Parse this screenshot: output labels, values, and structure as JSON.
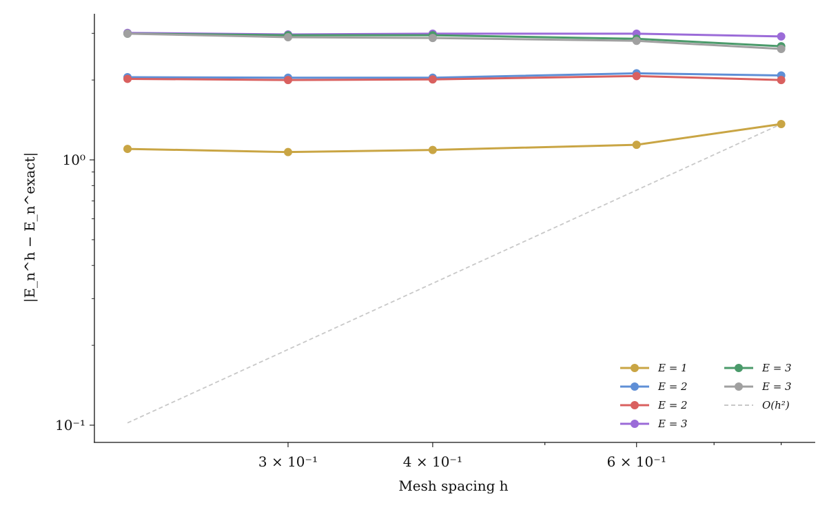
{
  "chart_data": {
    "type": "line",
    "xlabel": "Mesh spacing h",
    "ylabel": "|E_n^h − E_n^exact|",
    "xscale": "log",
    "yscale": "log",
    "x": [
      0.218,
      0.3,
      0.4,
      0.6,
      0.8
    ],
    "xlim": [
      0.2,
      0.85
    ],
    "ylim": [
      0.088,
      3.5
    ],
    "x_tick_labels": [
      {
        "value": 0.3,
        "label": "3 × 10⁻¹"
      },
      {
        "value": 0.4,
        "label": "4 × 10⁻¹"
      },
      {
        "value": 0.6,
        "label": "6 × 10⁻¹"
      }
    ],
    "y_tick_labels": [
      {
        "value": 1,
        "label": "10⁰"
      },
      {
        "value": 0.1,
        "label": "10⁻¹"
      }
    ],
    "grid": false,
    "legend_placement": "lower-right",
    "series": [
      {
        "name": "E = 1",
        "color": "#c9a544",
        "values": [
          1.1,
          1.07,
          1.09,
          1.14,
          1.365
        ]
      },
      {
        "name": "E = 2",
        "color": "#5f8fd6",
        "values": [
          2.05,
          2.04,
          2.04,
          2.12,
          2.08
        ]
      },
      {
        "name": "E = 2",
        "color": "#d9605f",
        "values": [
          2.02,
          2.0,
          2.01,
          2.07,
          2.0
        ]
      },
      {
        "name": "E = 3",
        "color": "#9b6bd8",
        "values": [
          3.01,
          2.97,
          2.99,
          2.99,
          2.92
        ]
      },
      {
        "name": "E = 3",
        "color": "#4a9a6a",
        "values": [
          2.99,
          2.95,
          2.95,
          2.86,
          2.68
        ]
      },
      {
        "name": "E = 3",
        "color": "#a0a0a0",
        "values": [
          2.99,
          2.9,
          2.88,
          2.81,
          2.62
        ]
      }
    ],
    "reference": {
      "name": "O(h²)",
      "color": "#c8c8c8",
      "style": "dashed",
      "x": [
        0.218,
        0.8
      ],
      "values": [
        0.102,
        1.365
      ]
    }
  }
}
